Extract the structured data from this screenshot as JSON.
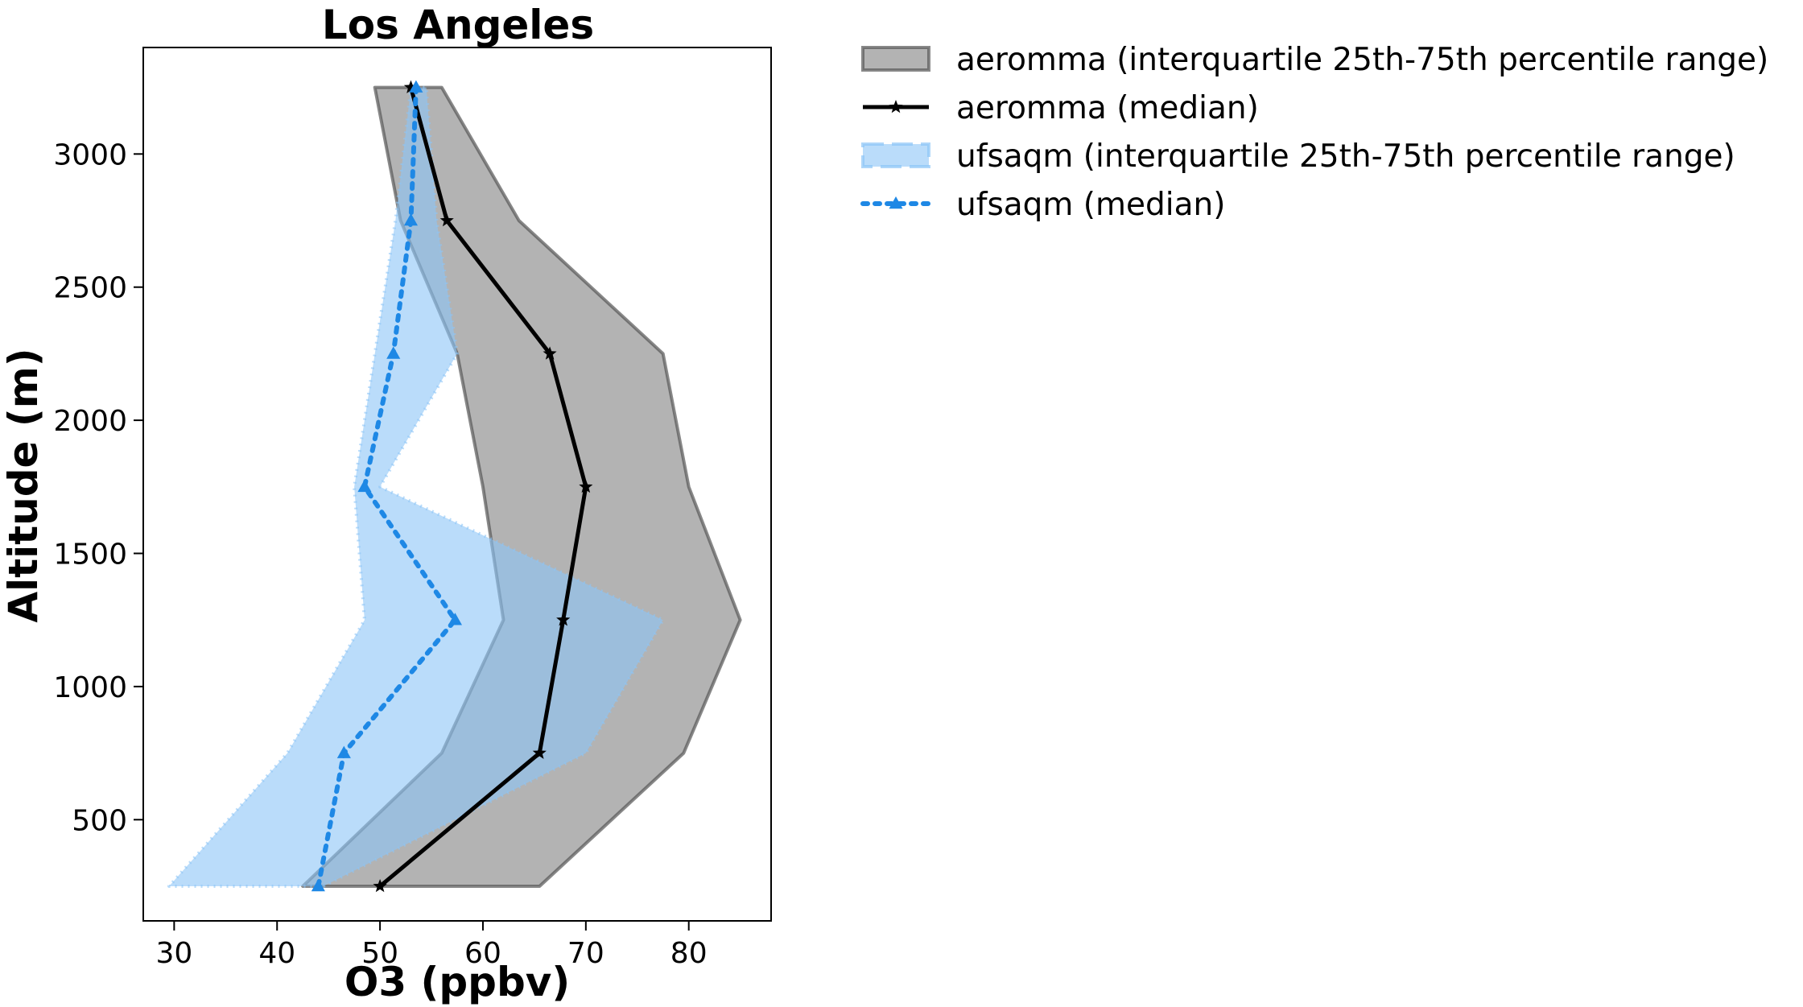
{
  "chart_data": {
    "type": "line",
    "title": "Los Angeles",
    "xlabel": "O3 (ppbv)",
    "ylabel": "Altitude (m)",
    "xlim": [
      27,
      88
    ],
    "ylim": [
      120,
      3400
    ],
    "xticks": [
      30,
      40,
      50,
      60,
      70,
      80
    ],
    "yticks": [
      500,
      1000,
      1500,
      2000,
      2500,
      3000
    ],
    "altitude": [
      250,
      750,
      1250,
      1750,
      2250,
      2750,
      3250
    ],
    "grid": false,
    "legend_position": "outside-right-top",
    "series": [
      {
        "name": "aeromma (interquartile 25th-75th percentile range)",
        "kind": "band",
        "lower": [
          42.5,
          56,
          62,
          60,
          57.5,
          52,
          49.5
        ],
        "upper": [
          65.5,
          79.5,
          85,
          80,
          77.5,
          63.5,
          56
        ],
        "fill": "#808080",
        "edge": "#555555"
      },
      {
        "name": "aeromma (median)",
        "kind": "line",
        "values": [
          50,
          65.5,
          67.8,
          70,
          66.5,
          56.5,
          53
        ],
        "color": "#000000",
        "marker": "star",
        "dash": "solid"
      },
      {
        "name": "ufsaqm (interquartile 25th-75th percentile range)",
        "kind": "band",
        "lower": [
          29.5,
          41,
          48.5,
          47.5,
          49.5,
          51.5,
          53
        ],
        "upper": [
          44.5,
          70,
          77.5,
          50,
          57.5,
          55.5,
          54.5
        ],
        "fill": "#8cc4f7",
        "edge": "#8cc4f7"
      },
      {
        "name": "ufsaqm (median)",
        "kind": "line",
        "values": [
          44,
          46.5,
          57.3,
          48.5,
          51.3,
          53,
          53.5
        ],
        "color": "#1e88e5",
        "marker": "triangle",
        "dash": "dotted"
      }
    ]
  }
}
